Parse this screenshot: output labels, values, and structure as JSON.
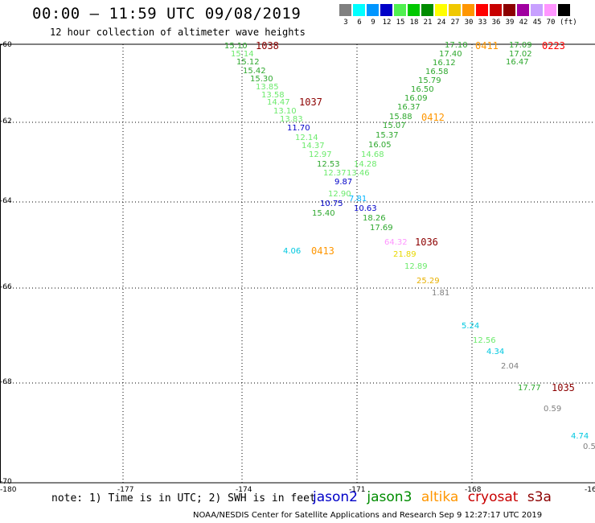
{
  "header": {
    "title": "00:00 – 11:59 UTC 09/08/2019",
    "subtitle": "12 hour collection of altimeter wave heights"
  },
  "legend": {
    "unit": "(ft)",
    "bins": [
      {
        "color": "#808080",
        "label": "3"
      },
      {
        "color": "#00ffff",
        "label": "6"
      },
      {
        "color": "#0096ff",
        "label": "9"
      },
      {
        "color": "#0000c8",
        "label": "12"
      },
      {
        "color": "#50f050",
        "label": "15"
      },
      {
        "color": "#00c800",
        "label": "18"
      },
      {
        "color": "#008c00",
        "label": "21"
      },
      {
        "color": "#ffff00",
        "label": "24"
      },
      {
        "color": "#f0c800",
        "label": "27"
      },
      {
        "color": "#ff9600",
        "label": "30"
      },
      {
        "color": "#ff0000",
        "label": "33"
      },
      {
        "color": "#c80000",
        "label": "36"
      },
      {
        "color": "#8c0000",
        "label": "39"
      },
      {
        "color": "#a000a0",
        "label": "42"
      },
      {
        "color": "#c8a0ff",
        "label": "45"
      },
      {
        "color": "#ff96ff",
        "label": "70"
      },
      {
        "color": "#000000",
        "label": ""
      }
    ]
  },
  "axes": {
    "y_ticks": [
      "-60",
      "-62",
      "-64",
      "-66",
      "-68",
      "-70"
    ],
    "x_ticks": [
      "-180",
      "-177",
      "-174",
      "-171",
      "-168",
      "-16"
    ]
  },
  "passes": [
    {
      "text": "1038",
      "color": "#8c0000"
    },
    {
      "text": "1037",
      "color": "#8c0000"
    },
    {
      "text": "0412",
      "color": "#ff9600"
    },
    {
      "text": "0411",
      "color": "#ff9600"
    },
    {
      "text": "0223",
      "color": "#ff0000"
    },
    {
      "text": "0413",
      "color": "#ff9600"
    },
    {
      "text": "1036",
      "color": "#8c0000"
    },
    {
      "text": "1035",
      "color": "#8c0000"
    }
  ],
  "values": [
    {
      "text": "15.10",
      "color": "#2ea82e"
    },
    {
      "text": "15.14",
      "color": "#6cea6c"
    },
    {
      "text": "15.12",
      "color": "#2ea82e"
    },
    {
      "text": "15.42",
      "color": "#2ea82e"
    },
    {
      "text": "15.30",
      "color": "#2ea82e"
    },
    {
      "text": "13.85",
      "color": "#6cea6c"
    },
    {
      "text": "13.58",
      "color": "#6cea6c"
    },
    {
      "text": "14.47",
      "color": "#6cea6c"
    },
    {
      "text": "13.10",
      "color": "#6cea6c"
    },
    {
      "text": "13.83",
      "color": "#6cea6c"
    },
    {
      "text": "11.70",
      "color": "#0000c8"
    },
    {
      "text": "12.14",
      "color": "#6cea6c"
    },
    {
      "text": "14.37",
      "color": "#6cea6c"
    },
    {
      "text": "12.97",
      "color": "#6cea6c"
    },
    {
      "text": "12.53",
      "color": "#2ea82e"
    },
    {
      "text": "12.37",
      "color": "#6cea6c"
    },
    {
      "text": "9.87",
      "color": "#0000c8"
    },
    {
      "text": "12.90",
      "color": "#6cea6c"
    },
    {
      "text": "10.75",
      "color": "#0000c8"
    },
    {
      "text": "15.40",
      "color": "#2ea82e"
    },
    {
      "text": "17.10",
      "color": "#2ea82e"
    },
    {
      "text": "17.40",
      "color": "#2ea82e"
    },
    {
      "text": "16.12",
      "color": "#2ea82e"
    },
    {
      "text": "16.58",
      "color": "#2ea82e"
    },
    {
      "text": "15.79",
      "color": "#2ea82e"
    },
    {
      "text": "16.50",
      "color": "#2ea82e"
    },
    {
      "text": "16.09",
      "color": "#2ea82e"
    },
    {
      "text": "16.37",
      "color": "#2ea82e"
    },
    {
      "text": "15.88",
      "color": "#2ea82e"
    },
    {
      "text": "15.07",
      "color": "#2ea82e"
    },
    {
      "text": "15.37",
      "color": "#2ea82e"
    },
    {
      "text": "16.05",
      "color": "#2ea82e"
    },
    {
      "text": "14.68",
      "color": "#6cea6c"
    },
    {
      "text": "14.28",
      "color": "#6cea6c"
    },
    {
      "text": "13.46",
      "color": "#6cea6c"
    },
    {
      "text": "10.63",
      "color": "#0000c8"
    },
    {
      "text": "7.81",
      "color": "#00b4ff"
    },
    {
      "text": "18.26",
      "color": "#2ea82e"
    },
    {
      "text": "17.69",
      "color": "#2ea82e"
    },
    {
      "text": "17.09",
      "color": "#2ea82e"
    },
    {
      "text": "17.02",
      "color": "#2ea82e"
    },
    {
      "text": "16.47",
      "color": "#2ea82e"
    },
    {
      "text": "4.06",
      "color": "#00c8e0"
    },
    {
      "text": "64.32",
      "color": "#ff96ff"
    },
    {
      "text": "21.89",
      "color": "#e8d800"
    },
    {
      "text": "12.89",
      "color": "#6cea6c"
    },
    {
      "text": "25.29",
      "color": "#e8b000"
    },
    {
      "text": "1.81",
      "color": "#808080"
    },
    {
      "text": "5.24",
      "color": "#00c8e0"
    },
    {
      "text": "12.56",
      "color": "#6cea6c"
    },
    {
      "text": "4.34",
      "color": "#00c8e0"
    },
    {
      "text": "2.04",
      "color": "#808080"
    },
    {
      "text": "17.77",
      "color": "#2ea82e"
    },
    {
      "text": "0.59",
      "color": "#808080"
    },
    {
      "text": "4.74",
      "color": "#00c8e0"
    },
    {
      "text": "0.5",
      "color": "#808080"
    }
  ],
  "footer": {
    "note": "note: 1) Time is in UTC; 2) SWH is in feet",
    "satellites": [
      {
        "name": "jason2",
        "color": "#0000c8"
      },
      {
        "name": "jason3",
        "color": "#008c00"
      },
      {
        "name": "altika",
        "color": "#ff9600"
      },
      {
        "name": "cryosat",
        "color": "#c80000"
      },
      {
        "name": "s3a",
        "color": "#8c0000"
      }
    ],
    "credit": "NOAA/NESDIS Center for Satellite Applications and Research     Sep  9 12:27:17 UTC 2019"
  }
}
